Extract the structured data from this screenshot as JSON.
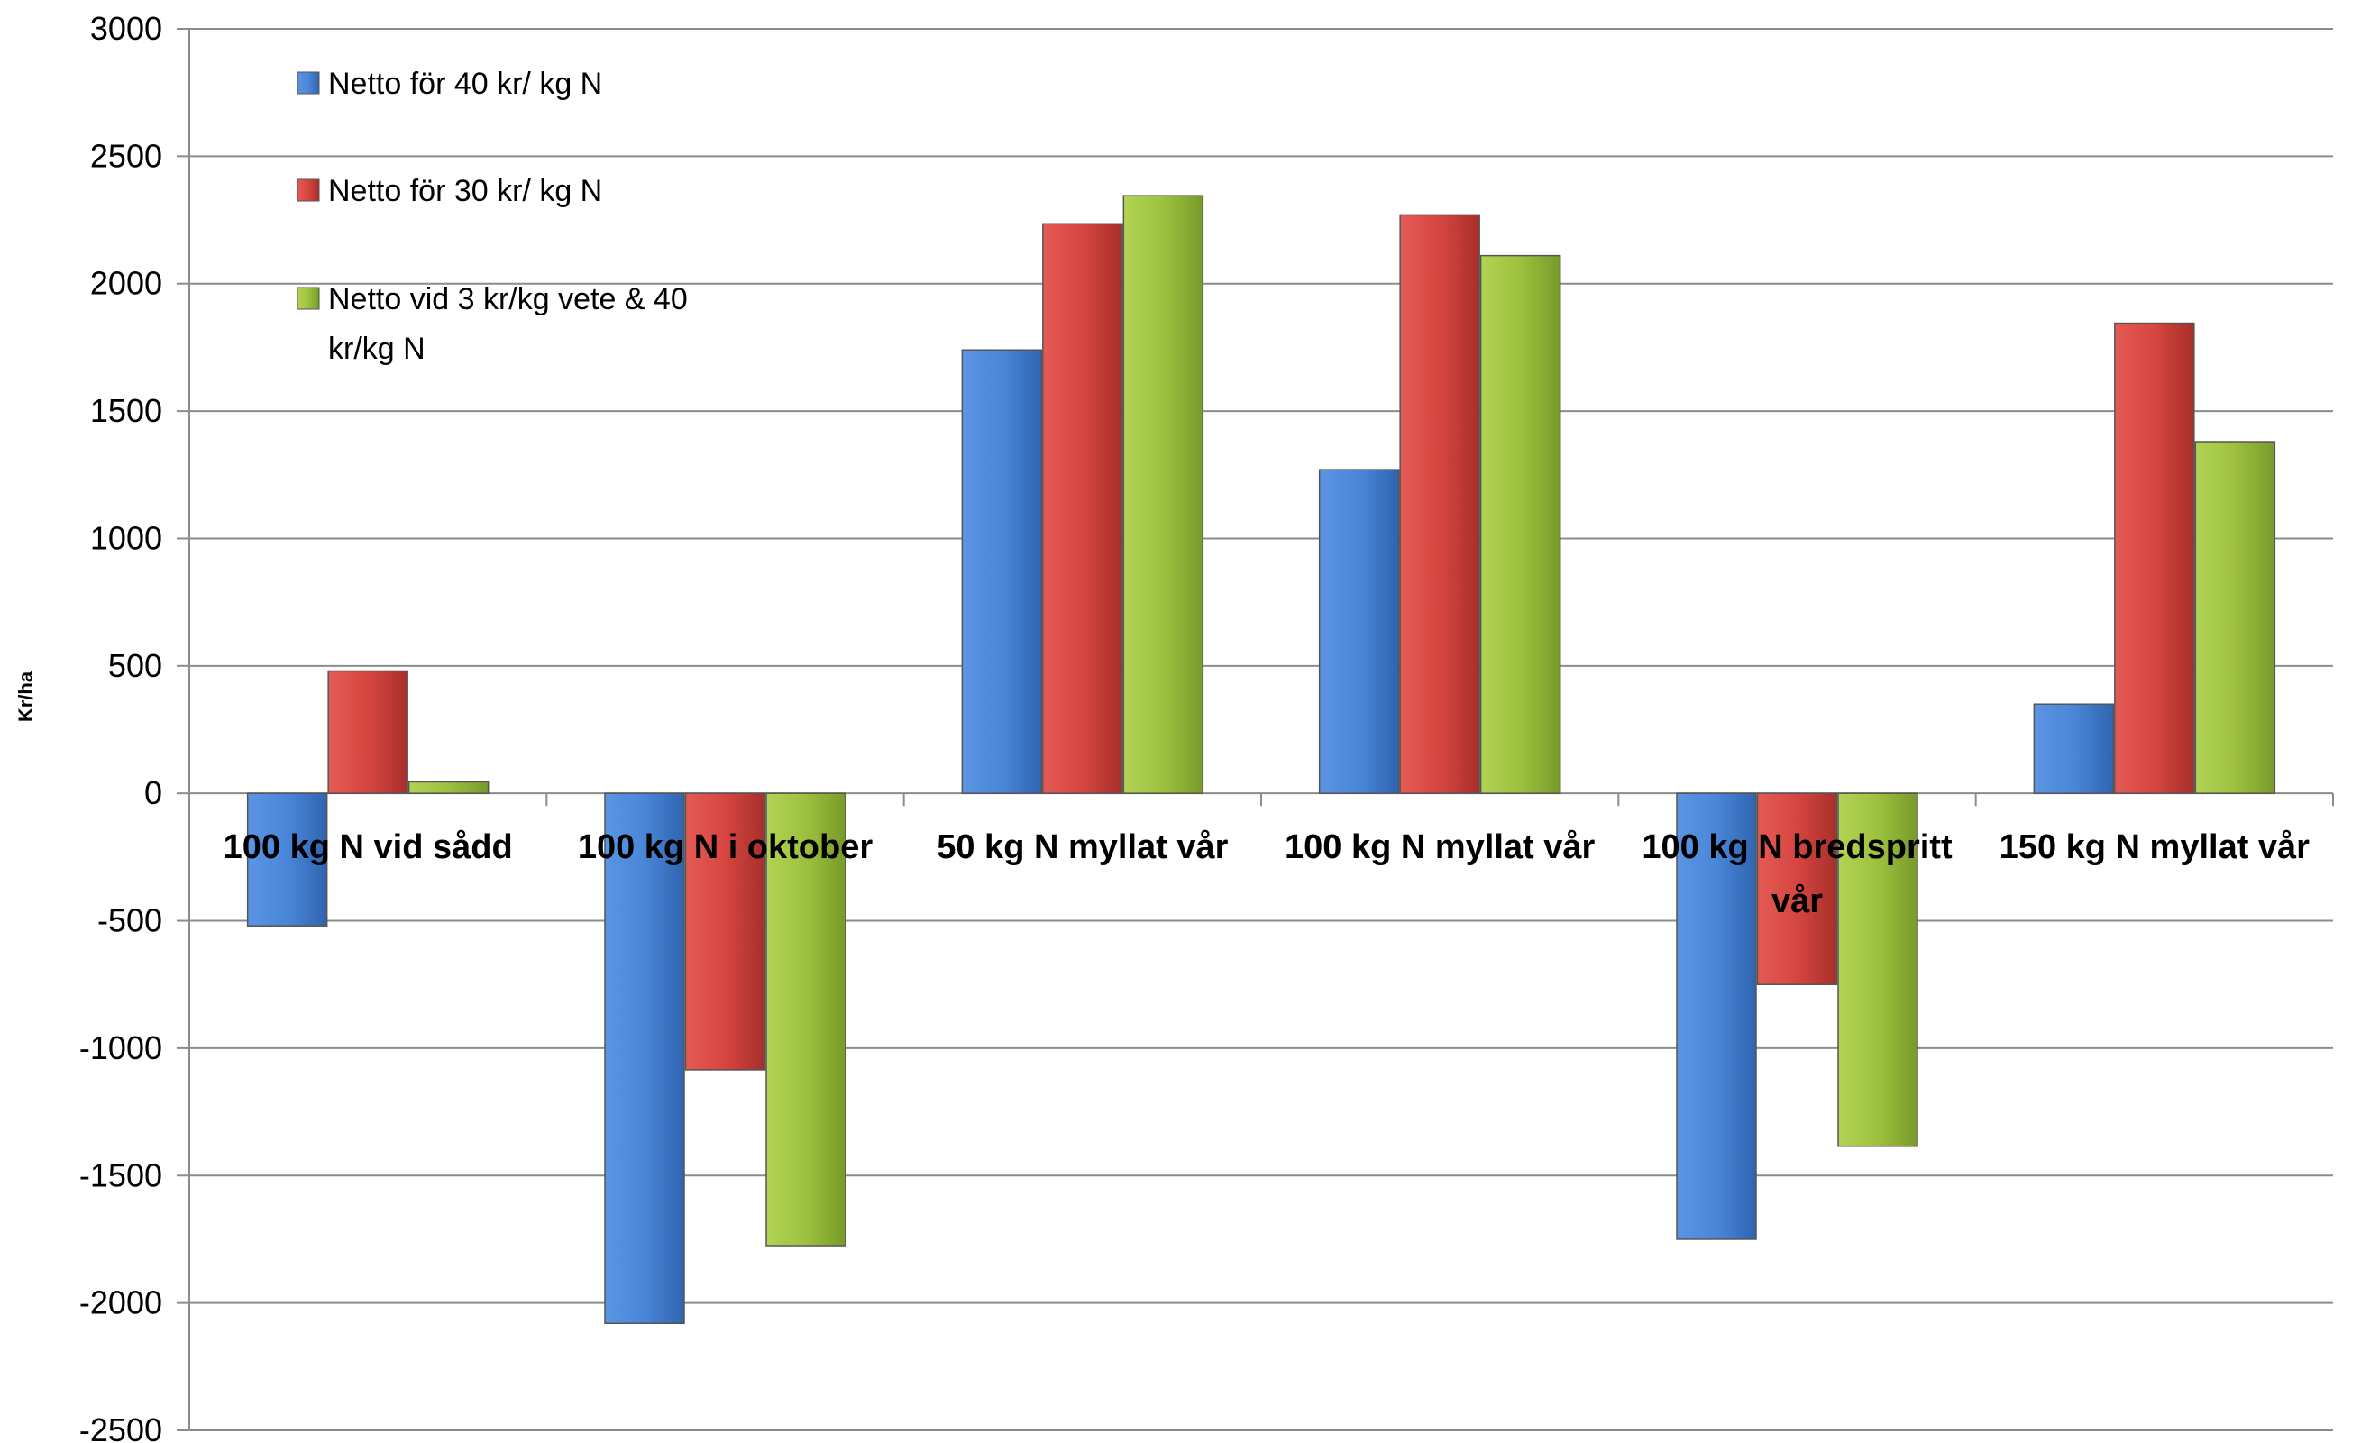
{
  "chart_data": {
    "type": "bar",
    "title": "",
    "xlabel": "",
    "ylabel": "Kr/ha",
    "ylim": [
      -2500,
      3000
    ],
    "ytick_step": 500,
    "yticks": [
      "3000",
      "2500",
      "2000",
      "1500",
      "1000",
      "500",
      "0",
      "-500",
      "-1000",
      "-1500",
      "-2000",
      "-2500"
    ],
    "grid": true,
    "legend_position": "top-left",
    "categories": [
      [
        "100 kg N vid sådd"
      ],
      [
        "100 kg N i oktober"
      ],
      [
        "50 kg N myllat vår"
      ],
      [
        "100 kg N myllat vår"
      ],
      [
        "100 kg N bredspritt",
        "vår"
      ],
      [
        "150 kg N myllat vår"
      ]
    ],
    "series": [
      {
        "name_lines": [
          "Netto för 40 kr/ kg N"
        ],
        "color": "#4a86d8",
        "values": [
          -520,
          -2080,
          1740,
          1270,
          -1750,
          350
        ]
      },
      {
        "name_lines": [
          "Netto för 30 kr/ kg N"
        ],
        "color": "#d64540",
        "values": [
          480,
          -1085,
          2235,
          2270,
          -750,
          1845
        ]
      },
      {
        "name_lines": [
          "Netto vid 3 kr/kg vete & 40",
          "kr/kg N"
        ],
        "color": "#9dc13e",
        "values": [
          45,
          -1775,
          2345,
          2110,
          -1385,
          1380
        ]
      }
    ]
  }
}
